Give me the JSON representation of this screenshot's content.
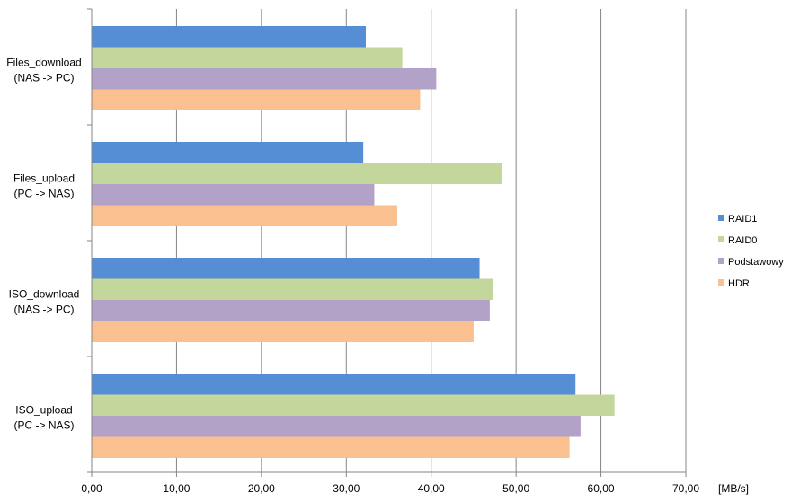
{
  "chart_data": {
    "type": "bar",
    "orientation": "horizontal",
    "categories": [
      [
        "Files_download",
        "(NAS -> PC)"
      ],
      [
        "Files_upload",
        "(PC -> NAS)"
      ],
      [
        "ISO_download",
        "(NAS -> PC)"
      ],
      [
        "ISO_upload",
        "(PC -> NAS)"
      ]
    ],
    "series": [
      {
        "name": "RAID1",
        "color": "#558ed5",
        "values": [
          32.3,
          32.0,
          45.7,
          57.0
        ]
      },
      {
        "name": "RAID0",
        "color": "#c3d69b",
        "values": [
          36.6,
          48.3,
          47.3,
          61.6
        ]
      },
      {
        "name": "Podstawowy",
        "color": "#b3a2c7",
        "values": [
          40.6,
          33.3,
          46.9,
          57.6
        ]
      },
      {
        "name": "HDR",
        "color": "#fac090",
        "values": [
          38.7,
          36.0,
          45.0,
          56.3
        ]
      }
    ],
    "xlim": [
      0,
      70
    ],
    "xticks": [
      0,
      10,
      20,
      30,
      40,
      50,
      60,
      70
    ],
    "xtick_labels": [
      "0,00",
      "10,00",
      "20,00",
      "30,00",
      "40,00",
      "50,00",
      "60,00",
      "70,00"
    ],
    "x_unit_label": "[MB/s]",
    "grid": true,
    "legend_position": "right"
  }
}
